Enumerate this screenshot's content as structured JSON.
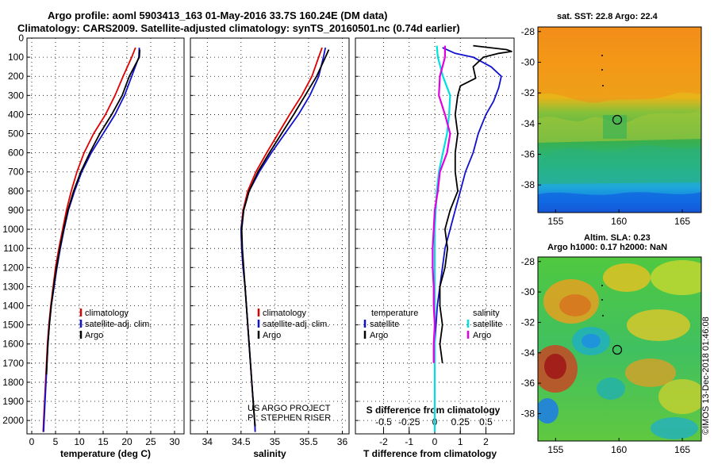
{
  "header": {
    "line1": "Argo profile: aoml 5903413_163 01-May-2016 33.7S 160.24E (DM data)",
    "line2": "Climatology: CARS2009. Satellite-adjusted climatology: synTS_20160501.nc (0.74d earlier)"
  },
  "colors": {
    "climatology": "#e00000",
    "satellite": "#1010d0",
    "argo": "#000000",
    "satellite_s": "#00e0e0",
    "salinity_clim": "#e000e0"
  },
  "depth_ticks": [
    "0",
    "100",
    "200",
    "300",
    "400",
    "500",
    "600",
    "700",
    "800",
    "900",
    "1000",
    "1100",
    "1200",
    "1300",
    "1400",
    "1500",
    "1600",
    "1700",
    "1800",
    "1900",
    "2000"
  ],
  "chart_data": [
    {
      "type": "line",
      "xlabel": "temperature (deg C)",
      "xticks": [
        "0",
        "5",
        "10",
        "15",
        "20",
        "25",
        "30"
      ],
      "xlim": [
        -1,
        32
      ],
      "ylim": [
        2070,
        0
      ],
      "legend": [
        "climatology",
        "satellite-adj. clim.",
        "Argo"
      ],
      "series": [
        {
          "name": "climatology",
          "color": "#e00000",
          "points": [
            [
              21.8,
              50
            ],
            [
              21,
              100
            ],
            [
              19.2,
              200
            ],
            [
              17.5,
              300
            ],
            [
              15.5,
              400
            ],
            [
              13,
              500
            ],
            [
              11,
              600
            ],
            [
              9.5,
              700
            ],
            [
              8.3,
              800
            ],
            [
              7.3,
              900
            ],
            [
              6.5,
              1000
            ],
            [
              5.7,
              1100
            ],
            [
              5,
              1200
            ],
            [
              4.5,
              1300
            ],
            [
              4,
              1400
            ],
            [
              3.6,
              1500
            ],
            [
              3.3,
              1600
            ],
            [
              3.1,
              1700
            ],
            [
              2.9,
              1800
            ],
            [
              2.7,
              1900
            ],
            [
              2.5,
              2000
            ],
            [
              2.4,
              2060
            ]
          ]
        },
        {
          "name": "satellite-adj. clim.",
          "color": "#1010d0",
          "points": [
            [
              22.6,
              50
            ],
            [
              22.5,
              100
            ],
            [
              21,
              200
            ],
            [
              19.5,
              300
            ],
            [
              17.5,
              400
            ],
            [
              15,
              500
            ],
            [
              12.5,
              600
            ],
            [
              10.5,
              700
            ],
            [
              9,
              800
            ],
            [
              7.7,
              900
            ],
            [
              6.8,
              1000
            ],
            [
              6,
              1100
            ],
            [
              5.3,
              1200
            ],
            [
              4.7,
              1300
            ],
            [
              4.1,
              1400
            ],
            [
              3.7,
              1500
            ],
            [
              3.4,
              1600
            ],
            [
              3.2,
              1700
            ],
            [
              3,
              1800
            ],
            [
              2.8,
              1900
            ],
            [
              2.6,
              2000
            ],
            [
              2.5,
              2060
            ]
          ]
        },
        {
          "name": "Argo",
          "color": "#000000",
          "points": [
            [
              22.7,
              60
            ],
            [
              22.6,
              100
            ],
            [
              20.5,
              200
            ],
            [
              19,
              300
            ],
            [
              16.8,
              400
            ],
            [
              14.3,
              500
            ],
            [
              12.2,
              600
            ],
            [
              10.3,
              700
            ],
            [
              8.8,
              800
            ],
            [
              7.6,
              900
            ],
            [
              6.7,
              1000
            ],
            [
              5.9,
              1100
            ],
            [
              5.2,
              1200
            ],
            [
              4.6,
              1300
            ],
            [
              4.1,
              1400
            ],
            [
              3.7,
              1500
            ],
            [
              3.4,
              1600
            ],
            [
              3.2,
              1700
            ],
            [
              3.1,
              1760
            ]
          ]
        }
      ]
    },
    {
      "type": "line",
      "xlabel": "salinity",
      "xticks": [
        "34",
        "34.5",
        "35",
        "35.5",
        "36"
      ],
      "xlim": [
        33.75,
        36.1
      ],
      "ylim": [
        2070,
        0
      ],
      "legend": [
        "climatology",
        "satellite-adj. clim.",
        "Argo"
      ],
      "series": [
        {
          "name": "climatology",
          "color": "#e00000",
          "points": [
            [
              35.7,
              50
            ],
            [
              35.65,
              100
            ],
            [
              35.55,
              200
            ],
            [
              35.4,
              300
            ],
            [
              35.22,
              400
            ],
            [
              35.05,
              500
            ],
            [
              34.88,
              600
            ],
            [
              34.72,
              700
            ],
            [
              34.6,
              800
            ],
            [
              34.53,
              900
            ],
            [
              34.5,
              1000
            ],
            [
              34.51,
              1100
            ],
            [
              34.53,
              1200
            ],
            [
              34.56,
              1300
            ],
            [
              34.58,
              1400
            ],
            [
              34.6,
              1500
            ],
            [
              34.62,
              1600
            ],
            [
              34.64,
              1700
            ],
            [
              34.66,
              1800
            ],
            [
              34.68,
              1900
            ],
            [
              34.7,
              2000
            ],
            [
              34.71,
              2060
            ]
          ]
        },
        {
          "name": "satellite-adj. clim.",
          "color": "#1010d0",
          "points": [
            [
              35.75,
              50
            ],
            [
              35.72,
              100
            ],
            [
              35.65,
              200
            ],
            [
              35.52,
              300
            ],
            [
              35.35,
              400
            ],
            [
              35.15,
              500
            ],
            [
              34.95,
              600
            ],
            [
              34.77,
              700
            ],
            [
              34.62,
              800
            ],
            [
              34.54,
              900
            ],
            [
              34.5,
              1000
            ],
            [
              34.51,
              1100
            ],
            [
              34.53,
              1200
            ],
            [
              34.56,
              1300
            ],
            [
              34.58,
              1400
            ],
            [
              34.6,
              1500
            ],
            [
              34.62,
              1600
            ],
            [
              34.64,
              1700
            ],
            [
              34.66,
              1800
            ],
            [
              34.68,
              1900
            ],
            [
              34.7,
              2000
            ],
            [
              34.71,
              2060
            ]
          ]
        },
        {
          "name": "Argo",
          "color": "#000000",
          "points": [
            [
              35.8,
              60
            ],
            [
              35.75,
              100
            ],
            [
              35.62,
              200
            ],
            [
              35.45,
              300
            ],
            [
              35.28,
              400
            ],
            [
              35.1,
              500
            ],
            [
              34.92,
              600
            ],
            [
              34.75,
              700
            ],
            [
              34.62,
              800
            ],
            [
              34.54,
              900
            ],
            [
              34.51,
              1000
            ],
            [
              34.52,
              1100
            ],
            [
              34.54,
              1200
            ],
            [
              34.56,
              1300
            ],
            [
              34.58,
              1400
            ],
            [
              34.6,
              1500
            ],
            [
              34.62,
              1600
            ],
            [
              34.64,
              1700
            ],
            [
              34.66,
              1800
            ],
            [
              34.68,
              1900
            ],
            [
              34.7,
              2000
            ],
            [
              34.71,
              2030
            ]
          ]
        }
      ]
    },
    {
      "type": "line",
      "xlabel": "T difference from climatology",
      "xlabel_top": "S difference from climatology",
      "xticks": [
        "-2",
        "-1",
        "0",
        "1",
        "2"
      ],
      "xticks_top": [
        "-0.5",
        "-0.25",
        "0",
        "0.25",
        "0.5"
      ],
      "xlim": [
        -3.1,
        3.1
      ],
      "ylim": [
        2070,
        0
      ],
      "legend_left_title": "temperature",
      "legend_left": [
        "satellite",
        "Argo"
      ],
      "legend_right_title": "salinity",
      "legend_right": [
        "satellite",
        "Argo"
      ],
      "series": [
        {
          "name": "T satellite",
          "color": "#1010d0",
          "points": [
            [
              0.3,
              50
            ],
            [
              0.8,
              80
            ],
            [
              1.5,
              100
            ],
            [
              2.2,
              150
            ],
            [
              2.6,
              200
            ],
            [
              2.5,
              260
            ],
            [
              2.3,
              330
            ],
            [
              2,
              400
            ],
            [
              1.7,
              500
            ],
            [
              1.5,
              600
            ],
            [
              1.2,
              700
            ],
            [
              1,
              800
            ],
            [
              0.8,
              900
            ],
            [
              0.6,
              1000
            ],
            [
              0.4,
              1100
            ],
            [
              0.3,
              1200
            ],
            [
              0.2,
              1300
            ],
            [
              0.1,
              1400
            ],
            [
              0.05,
              1500
            ],
            [
              0,
              1600
            ],
            [
              0,
              2060
            ]
          ]
        },
        {
          "name": "T Argo",
          "color": "#000000",
          "points": [
            [
              1.5,
              40
            ],
            [
              2.8,
              60
            ],
            [
              3,
              70
            ],
            [
              2.5,
              80
            ],
            [
              1.9,
              100
            ],
            [
              1.5,
              150
            ],
            [
              1.6,
              210
            ],
            [
              1,
              250
            ],
            [
              0.9,
              300
            ],
            [
              0.8,
              400
            ],
            [
              0.9,
              500
            ],
            [
              0.8,
              600
            ],
            [
              0.8,
              700
            ],
            [
              0.9,
              800
            ],
            [
              0.6,
              900
            ],
            [
              0.4,
              1000
            ],
            [
              0.5,
              1100
            ],
            [
              0.4,
              1200
            ],
            [
              0.2,
              1300
            ],
            [
              0.2,
              1400
            ],
            [
              0.3,
              1500
            ],
            [
              0.2,
              1600
            ],
            [
              0.3,
              1700
            ]
          ]
        },
        {
          "name": "S satellite",
          "color": "#00e0e0",
          "points": [
            [
              0.02,
              40
            ],
            [
              0.03,
              100
            ],
            [
              0.08,
              200
            ],
            [
              0.15,
              300
            ],
            [
              0.14,
              400
            ],
            [
              0.12,
              500
            ],
            [
              0.08,
              600
            ],
            [
              0.04,
              700
            ],
            [
              0.02,
              800
            ],
            [
              0.01,
              900
            ],
            [
              0,
              1000
            ],
            [
              0,
              2060
            ]
          ]
        },
        {
          "name": "S Argo",
          "color": "#e000e0",
          "points": [
            [
              0.1,
              40
            ],
            [
              0.1,
              100
            ],
            [
              0.05,
              200
            ],
            [
              0.04,
              300
            ],
            [
              0.1,
              400
            ],
            [
              0.15,
              500
            ],
            [
              0.12,
              600
            ],
            [
              0.05,
              700
            ],
            [
              0.03,
              800
            ],
            [
              0,
              900
            ],
            [
              -0.01,
              1000
            ],
            [
              -0.02,
              1100
            ],
            [
              -0.02,
              1200
            ],
            [
              -0.01,
              1300
            ],
            [
              -0.01,
              1400
            ],
            [
              0,
              1500
            ],
            [
              -0.01,
              1600
            ],
            [
              -0.01,
              1700
            ]
          ]
        }
      ]
    }
  ],
  "credits": {
    "line1": "US ARGO PROJECT",
    "line2": "PI: STEPHEN RISER"
  },
  "maps": [
    {
      "title": "sat. SST: 22.8 Argo: 22.4",
      "yticks": [
        "-28",
        "-30",
        "-32",
        "-34",
        "-36",
        "-38"
      ],
      "xticks": [
        "155",
        "160",
        "165"
      ]
    },
    {
      "title1": "Altim. SLA: 0.23",
      "title2": "Argo h1000: 0.17 h2000: NaN",
      "yticks": [
        "-28",
        "-30",
        "-32",
        "-34",
        "-36",
        "-38"
      ],
      "xticks": [
        "155",
        "160",
        "165"
      ]
    }
  ],
  "stamp": "©IMOS 13-Dec-2018 01:46:08"
}
